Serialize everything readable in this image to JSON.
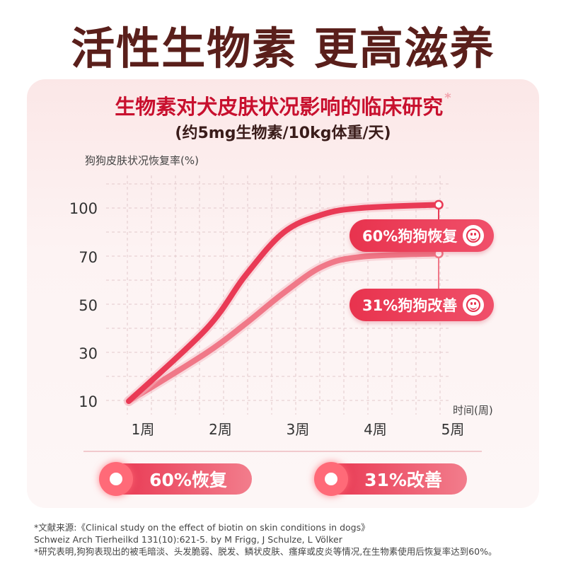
{
  "headline": "活性生物素 更高滋养",
  "panel": {
    "title": "生物素对犬皮肤状况影响的临床研究",
    "title_mark": "*",
    "subtitle": "(约5mg生物素/10kg体重/天)"
  },
  "chart_data": {
    "type": "line",
    "ylabel": "狗狗皮肤状况恢复率(%)",
    "xlabel": "时间(周)",
    "y_ticks": [
      10,
      30,
      50,
      70,
      100
    ],
    "x_ticks": [
      "1周",
      "2周",
      "3周",
      "4周",
      "5周"
    ],
    "series": [
      {
        "name": "60%狗狗恢复",
        "x": [
          1,
          2,
          2.5,
          3,
          3.5,
          4,
          5
        ],
        "y": [
          10,
          40,
          62,
          85,
          96,
          100,
          102
        ]
      },
      {
        "name": "31%狗狗改善",
        "x": [
          1,
          2,
          2.5,
          3,
          3.5,
          4,
          5
        ],
        "y": [
          10,
          30,
          42,
          55,
          66,
          70,
          72
        ]
      }
    ],
    "colors": [
      "#e93a55",
      "#f07888"
    ]
  },
  "summary": {
    "left": "60%恢复",
    "right": "31%改善"
  },
  "footnotes": [
    "*文献来源:《Clinical study on the effect of biotin on skin conditions in dogs》",
    "Schweiz Arch Tierheilkd 131(10):621-5. by M Frigg, J Schulze, L Völker",
    "*研究表明,狗狗表现出的被毛暗淡、头发脆弱、脱发、鳞状皮肤、瘙痒或皮炎等情况,在生物素使用后恢复率达到60%。"
  ]
}
